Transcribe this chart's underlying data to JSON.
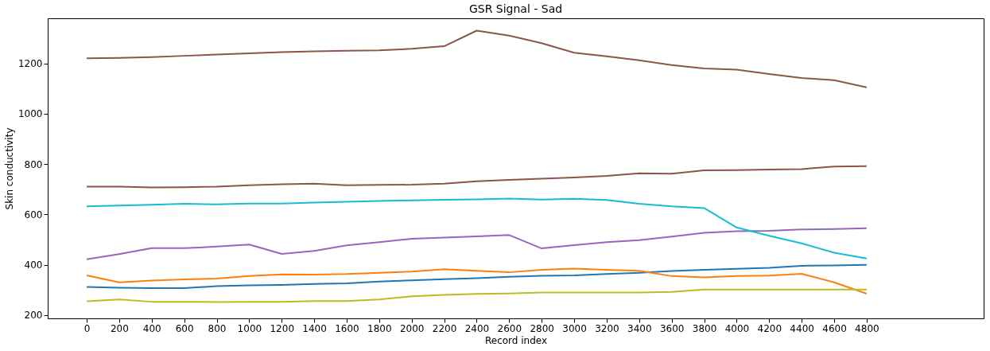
{
  "chart_data": {
    "type": "line",
    "title": "GSR Signal - Sad",
    "xlabel": "Record index",
    "ylabel": "Skin conductivity",
    "x": [
      0,
      200,
      400,
      600,
      800,
      1000,
      1200,
      1400,
      1600,
      1800,
      2000,
      2200,
      2400,
      2600,
      2800,
      3000,
      3200,
      3400,
      3600,
      3800,
      4000,
      4200,
      4400,
      4600,
      4800
    ],
    "xlim": [
      -240,
      5520
    ],
    "xticks": [
      0,
      200,
      400,
      600,
      800,
      1000,
      1200,
      1400,
      1600,
      1800,
      2000,
      2200,
      2400,
      2600,
      2800,
      3000,
      3200,
      3400,
      3600,
      3800,
      4000,
      4200,
      4400,
      4600,
      4800
    ],
    "ylim": [
      187,
      1379
    ],
    "yticks": [
      200,
      400,
      600,
      800,
      1000,
      1200
    ],
    "grid": false,
    "legend": false,
    "marker": "none",
    "line_style": "solid",
    "series": [
      {
        "color": "#1f77b4",
        "values": [
          312,
          309,
          307,
          307,
          315,
          318,
          320,
          324,
          326,
          333,
          338,
          343,
          347,
          352,
          356,
          358,
          363,
          368,
          375,
          380,
          384,
          388,
          396,
          397,
          400
        ]
      },
      {
        "color": "#ff7f0e",
        "values": [
          358,
          330,
          337,
          342,
          345,
          355,
          362,
          361,
          363,
          368,
          373,
          382,
          376,
          370,
          380,
          385,
          380,
          376,
          355,
          350,
          355,
          357,
          364,
          330,
          285
        ]
      },
      {
        "color": "#9467bd",
        "values": [
          422,
          442,
          466,
          466,
          472,
          480,
          443,
          455,
          477,
          490,
          503,
          508,
          513,
          518,
          465,
          478,
          490,
          498,
          512,
          527,
          533,
          535,
          540,
          542,
          545
        ]
      },
      {
        "color": "#8c564b",
        "values": [
          1220,
          1222,
          1225,
          1230,
          1235,
          1240,
          1245,
          1248,
          1250,
          1252,
          1258,
          1268,
          1330,
          1310,
          1280,
          1242,
          1228,
          1212,
          1193,
          1180,
          1175,
          1158,
          1142,
          1133,
          1105
        ]
      },
      {
        "color": "#8c564b",
        "values": [
          710,
          710,
          707,
          708,
          710,
          716,
          720,
          722,
          716,
          717,
          718,
          722,
          732,
          737,
          742,
          747,
          753,
          763,
          762,
          775,
          776,
          778,
          780,
          790,
          792
        ]
      },
      {
        "color": "#bcbd22",
        "values": [
          255,
          262,
          253,
          253,
          252,
          253,
          253,
          256,
          256,
          262,
          275,
          280,
          284,
          286,
          290,
          290,
          290,
          290,
          292,
          302,
          302,
          302,
          302,
          302,
          302
        ]
      },
      {
        "color": "#17becf",
        "values": [
          632,
          635,
          638,
          642,
          640,
          643,
          643,
          647,
          650,
          653,
          656,
          658,
          660,
          663,
          659,
          662,
          657,
          642,
          632,
          625,
          548,
          515,
          485,
          448,
          425
        ]
      }
    ]
  }
}
